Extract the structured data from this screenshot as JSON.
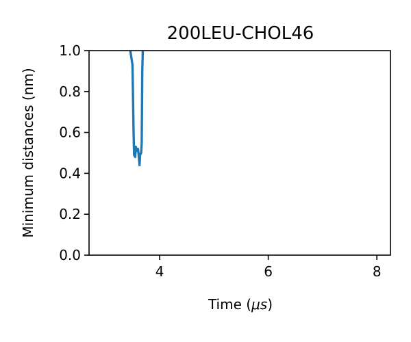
{
  "chart_data": {
    "type": "line",
    "title": "200LEU-CHOL46",
    "xlabel_prefix": "Time (",
    "xlabel_unit": "μs",
    "xlabel_suffix": ")",
    "ylabel": "Minimum distances (nm)",
    "xlim": [
      2.7,
      8.25
    ],
    "ylim": [
      0.0,
      1.0
    ],
    "xticks": [
      4,
      6,
      8
    ],
    "xtick_labels": [
      "4",
      "6",
      "8"
    ],
    "yticks": [
      0.0,
      0.2,
      0.4,
      0.6,
      0.8,
      1.0
    ],
    "ytick_labels": [
      "0.0",
      "0.2",
      "0.4",
      "0.6",
      "0.8",
      "1.0"
    ],
    "grid": false,
    "series": [
      {
        "color": "#1f77b4",
        "x": [
          3.46,
          3.5,
          3.52,
          3.53,
          3.55,
          3.56,
          3.58,
          3.6,
          3.61,
          3.63,
          3.64,
          3.66,
          3.67,
          3.68,
          3.69
        ],
        "y": [
          1.0,
          0.93,
          0.6,
          0.49,
          0.48,
          0.53,
          0.51,
          0.52,
          0.5,
          0.44,
          0.49,
          0.5,
          0.55,
          0.9,
          1.0
        ]
      }
    ]
  }
}
